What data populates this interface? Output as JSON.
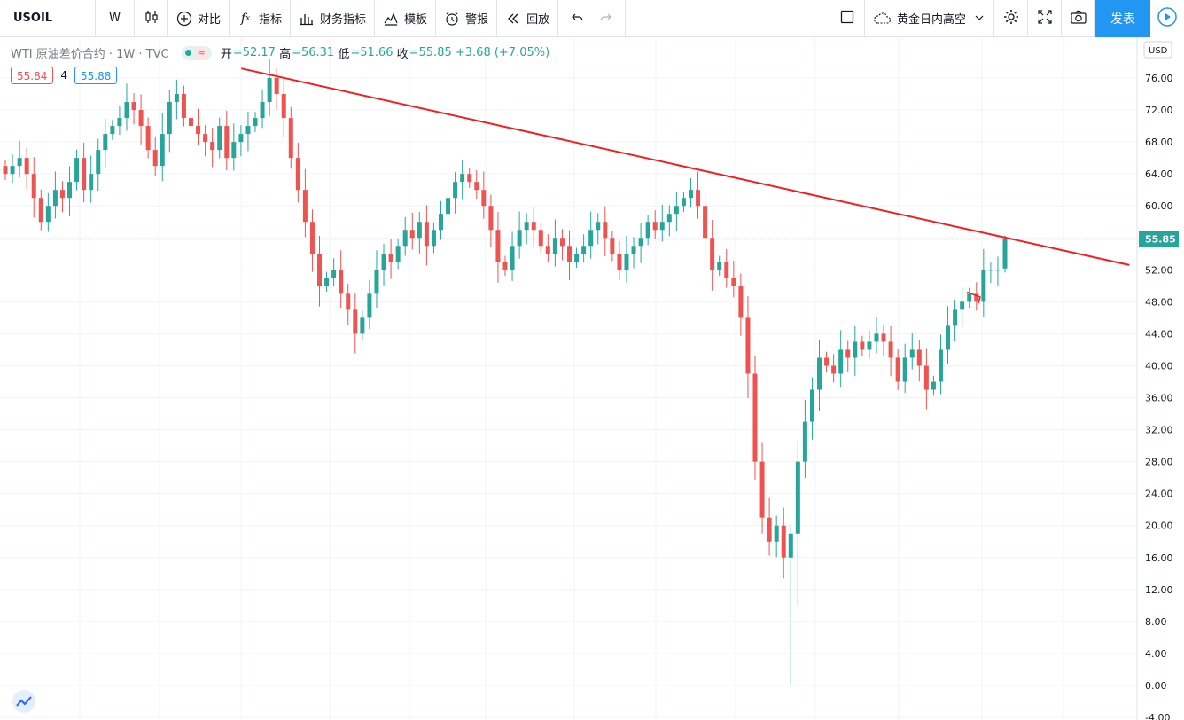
{
  "toolbar": {
    "symbol": "USOIL",
    "interval": "W",
    "compare": "对比",
    "indicators": "指标",
    "financials": "财务指标",
    "templates": "模板",
    "alert": "警报",
    "replay": "回放",
    "layout_name": "黄金日内高空",
    "publish": "发表"
  },
  "legend": {
    "title": "WTI 原油差价合约 · 1W · TVC",
    "open_label": "开",
    "open": "=52.17",
    "high_label": "高",
    "high": "=56.31",
    "low_label": "低",
    "low": "=51.66",
    "close_label": "收",
    "close": "=55.85",
    "change": "+3.68 (+7.05%)"
  },
  "quotes": {
    "bid": "55.84",
    "spread": "4",
    "ask": "55.88"
  },
  "colors": {
    "up": "#26a69a",
    "down": "#ef5350",
    "trendline": "#f02020",
    "accent": "#2196f3"
  },
  "chart_data": {
    "type": "candlestick",
    "currency": "USD",
    "ylim": [
      -4,
      78
    ],
    "y_ticks": [
      -4,
      0,
      4,
      8,
      12,
      16,
      20,
      24,
      28,
      32,
      36,
      40,
      44,
      48,
      52,
      56,
      60,
      64,
      68,
      72,
      76
    ],
    "last_price": "55.85",
    "trendline": {
      "from": [
        0.2037,
        77.2
      ],
      "to": [
        0.9538,
        52.6
      ]
    },
    "closes": [
      64,
      65,
      66,
      64,
      61,
      58,
      60,
      62,
      61,
      63,
      66,
      62,
      64,
      67,
      69,
      70,
      71,
      73,
      72,
      70,
      67,
      65,
      69,
      73,
      74,
      71,
      70,
      69,
      68,
      67,
      70,
      66,
      68,
      69,
      70,
      71,
      73,
      76,
      74,
      71,
      66,
      62,
      58,
      54,
      50,
      51,
      52,
      49,
      47,
      44,
      46,
      49,
      52,
      54,
      53,
      55,
      57,
      56,
      58,
      55,
      57,
      59,
      61,
      63,
      64,
      63,
      62,
      60,
      57,
      53,
      52,
      55,
      57,
      58,
      57,
      55,
      54,
      56,
      55,
      53,
      54,
      55,
      57,
      58,
      56,
      54,
      52,
      54,
      55,
      56,
      58,
      57,
      58,
      59,
      60,
      61,
      62,
      60,
      56,
      52,
      53,
      51,
      50,
      46,
      39,
      28,
      21,
      18,
      20,
      16,
      19,
      28,
      33,
      37,
      41,
      40,
      39,
      42,
      41,
      43,
      42,
      43,
      44,
      43,
      41,
      38,
      41,
      42,
      40,
      37,
      38,
      42,
      45,
      47,
      48,
      49,
      48,
      52,
      52,
      52,
      55.85
    ],
    "highs": [],
    "lows": []
  }
}
